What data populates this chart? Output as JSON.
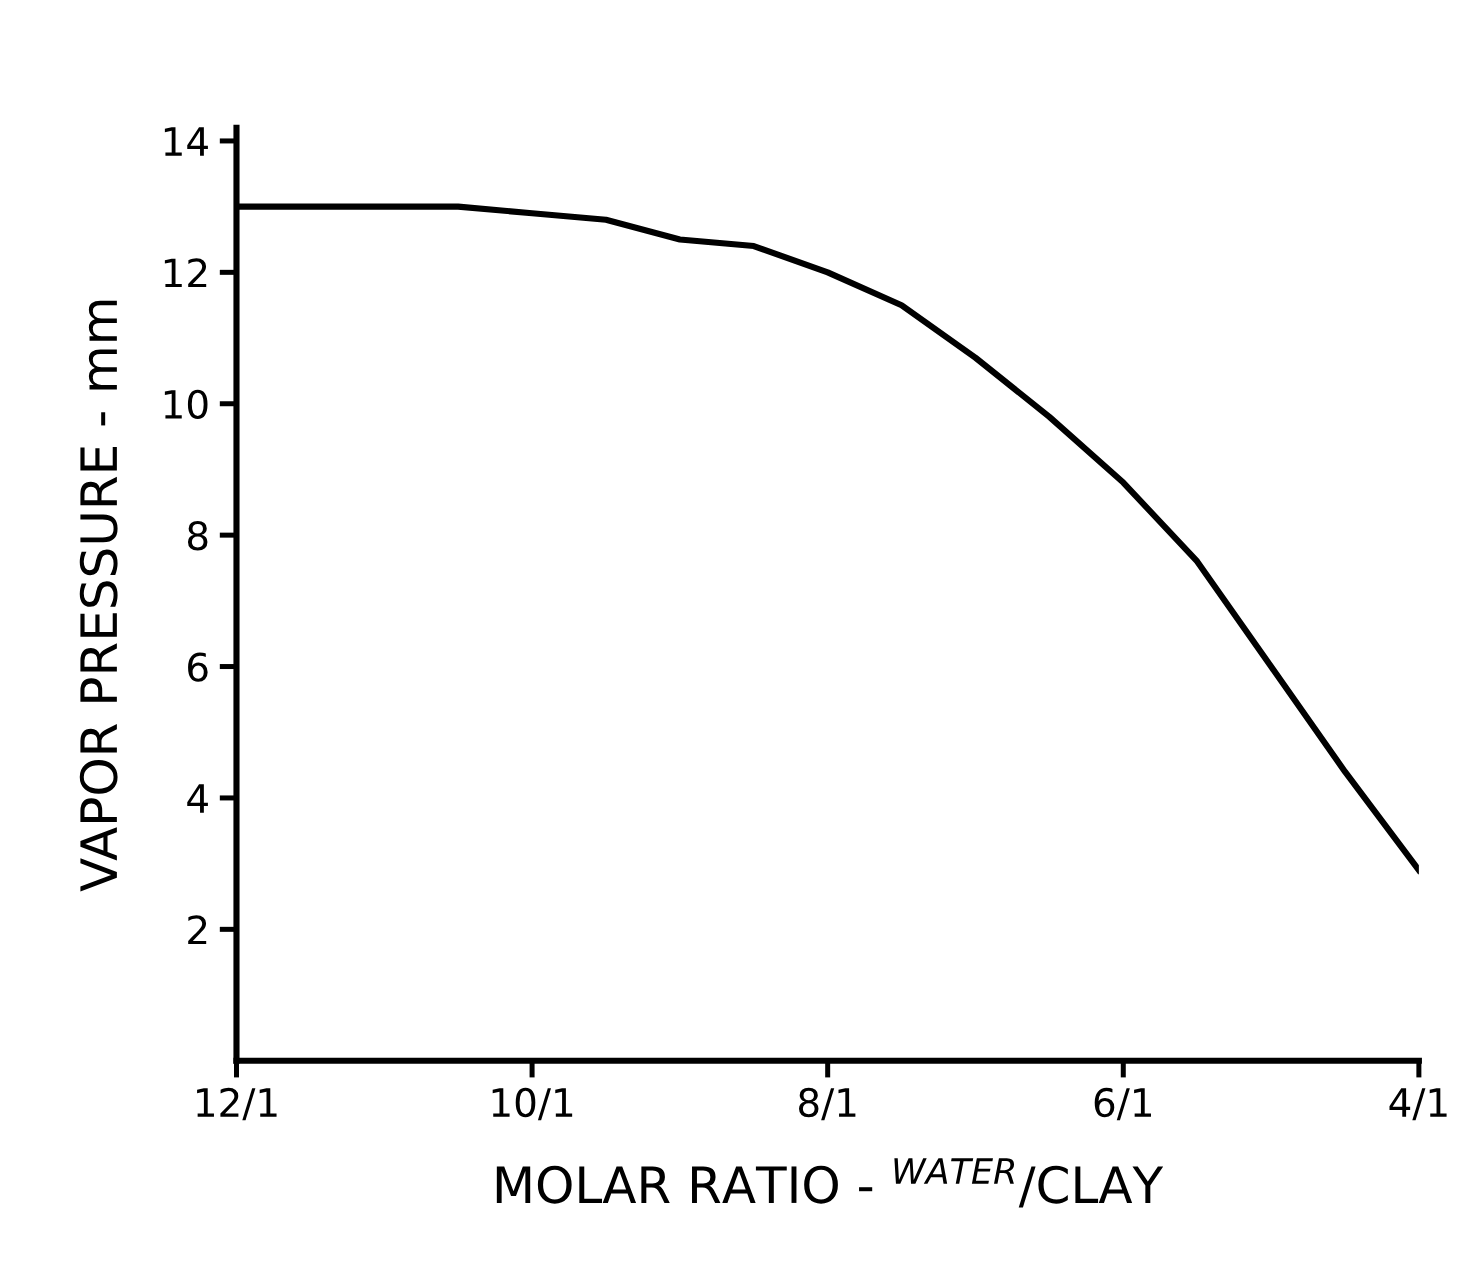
{
  "chart_data": {
    "type": "line",
    "xlabel": "MOLAR RATIO - $^{WATER}$/CLAY",
    "ylabel": "VAPOR PRESSURE - mm",
    "categories": [
      "12/1",
      null,
      null,
      null,
      "10/1",
      null,
      null,
      null,
      "8/1",
      null,
      null,
      null,
      "6/1",
      null,
      null,
      null,
      "4/1"
    ],
    "series": [
      {
        "color": "#000000",
        "values": [
          13.0,
          13.0,
          13.0,
          13.0,
          12.9,
          12.8,
          12.5,
          12.4,
          12.0,
          11.5,
          10.7,
          9.8,
          8.8,
          7.6,
          6.0,
          4.4,
          2.9
        ]
      }
    ],
    "ylim": [
      0,
      14.2
    ],
    "yticks": [
      2,
      4,
      6,
      8,
      10,
      12,
      14
    ],
    "grid": false,
    "legend": false,
    "marker": "none",
    "line_style": "solid"
  }
}
